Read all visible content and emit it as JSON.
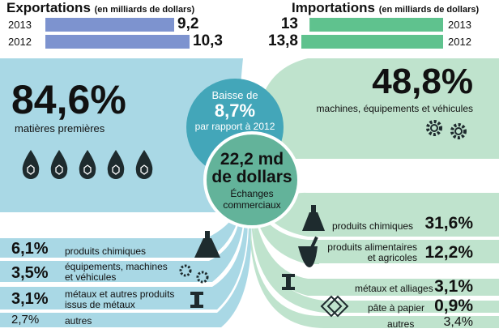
{
  "colors": {
    "export_bar": "#7d93cf",
    "import_bar": "#5fc28e",
    "export_flow": "#a9d8e5",
    "import_flow": "#bfe3cd",
    "circle_dark": "#43a6b9",
    "circle_mid": "#63b39a",
    "icon": "#1e2b2e"
  },
  "exports": {
    "title": "Exportations",
    "unit": "(en milliards de dollars)",
    "rows": [
      {
        "year": "2013",
        "value": 9.2,
        "label": "9,2"
      },
      {
        "year": "2012",
        "value": 10.3,
        "label": "10,3"
      }
    ],
    "breakdown": [
      {
        "pct": "84,6%",
        "label": "matières premières",
        "value": 84.6
      },
      {
        "pct": "6,1%",
        "label": "produits chimiques",
        "value": 6.1
      },
      {
        "pct": "3,5%",
        "label_line1": "équipements, machines",
        "label_line2": "et véhicules",
        "value": 3.5
      },
      {
        "pct": "3,1%",
        "label_line1": "métaux et autres produits",
        "label_line2": "issus de métaux",
        "value": 3.1
      },
      {
        "pct": "2,7%",
        "label": "autres",
        "value": 2.7
      }
    ]
  },
  "imports": {
    "title": "Importations",
    "unit": "(en milliards de dollars)",
    "rows": [
      {
        "year": "2013",
        "value": 13,
        "label": "13"
      },
      {
        "year": "2012",
        "value": 13.8,
        "label": "13,8"
      }
    ],
    "breakdown": [
      {
        "pct": "48,8%",
        "label": "machines, équipements et véhicules",
        "value": 48.8
      },
      {
        "pct": "31,6%",
        "label": "produits chimiques",
        "value": 31.6
      },
      {
        "pct": "12,2%",
        "label_line1": "produits alimentaires",
        "label_line2": "et agricoles",
        "value": 12.2
      },
      {
        "pct": "3,1%",
        "label": "métaux et alliages",
        "value": 3.1
      },
      {
        "pct": "0,9%",
        "label": "pâte à papier",
        "value": 0.9
      },
      {
        "pct": "3,4%",
        "label": "autres",
        "value": 3.4
      }
    ]
  },
  "drop": {
    "line1": "Baisse de",
    "value": "8,7%",
    "line3": "par rapport à 2012"
  },
  "total": {
    "line1": "22,2 md",
    "line2": "de dollars",
    "line3": "Échanges",
    "line4": "commerciaux"
  },
  "chart_data": {
    "type": "bar",
    "categories": [
      "2013",
      "2012"
    ],
    "series": [
      {
        "name": "Exportations",
        "values": [
          9.2,
          10.3
        ]
      },
      {
        "name": "Importations",
        "values": [
          13,
          13.8
        ]
      }
    ],
    "xlim": [
      0,
      13.8
    ],
    "export_shares": {
      "categories": [
        "matières premières",
        "produits chimiques",
        "équipements, machines et véhicules",
        "métaux et autres produits issus de métaux",
        "autres"
      ],
      "values": [
        84.6,
        6.1,
        3.5,
        3.1,
        2.7
      ]
    },
    "import_shares": {
      "categories": [
        "machines, équipements et véhicules",
        "produits chimiques",
        "produits alimentaires et agricoles",
        "métaux et alliages",
        "pâte à papier",
        "autres"
      ],
      "values": [
        48.8,
        31.6,
        12.2,
        3.1,
        0.9,
        3.4
      ]
    },
    "total_trade": 22.2,
    "decline_vs_2012_pct": 8.7
  }
}
